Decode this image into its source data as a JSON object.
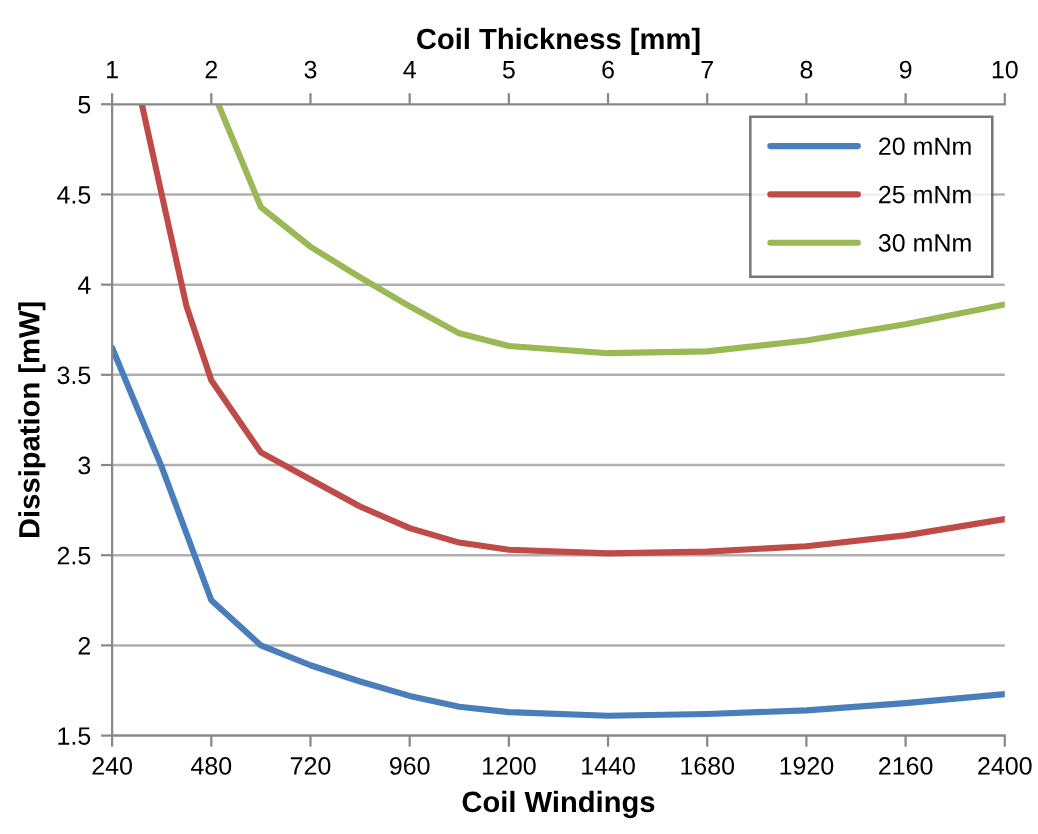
{
  "chart_data": {
    "type": "line",
    "xlabel": "Coil Windings",
    "ylabel": "Dissipation [mW]",
    "x2label": "Coil Thickness [mm]",
    "xlim": [
      240,
      2400
    ],
    "xticks": [
      240,
      480,
      720,
      960,
      1200,
      1440,
      1680,
      1920,
      2160,
      2400
    ],
    "x2lim": [
      1,
      10
    ],
    "x2ticks": [
      1,
      2,
      3,
      4,
      5,
      6,
      7,
      8,
      9,
      10
    ],
    "ylim": [
      1.5,
      5
    ],
    "yticks": [
      1.5,
      2,
      2.5,
      3,
      3.5,
      4,
      4.5,
      5
    ],
    "grid": "y",
    "legend": "top right",
    "marker": "none",
    "line_style": "solid",
    "series": [
      {
        "name": "20 mNm",
        "color": "#4a7ebb",
        "x": [
          240,
          360,
          480,
          600,
          720,
          840,
          960,
          1080,
          1200,
          1440,
          1680,
          1920,
          2160,
          2400
        ],
        "values": [
          3.65,
          2.99,
          2.25,
          2.0,
          1.89,
          1.8,
          1.72,
          1.66,
          1.63,
          1.61,
          1.62,
          1.64,
          1.68,
          1.73
        ]
      },
      {
        "name": "25 mNm",
        "color": "#be4b48",
        "x": [
          312,
          360,
          420,
          480,
          600,
          720,
          840,
          960,
          1080,
          1200,
          1440,
          1680,
          1920,
          2160,
          2400
        ],
        "values": [
          5.0,
          4.5,
          3.88,
          3.47,
          3.07,
          2.92,
          2.77,
          2.65,
          2.57,
          2.53,
          2.51,
          2.52,
          2.55,
          2.61,
          2.7
        ]
      },
      {
        "name": "30 mNm",
        "color": "#98b954",
        "x": [
          497,
          600,
          720,
          840,
          960,
          1080,
          1200,
          1440,
          1680,
          1920,
          2160,
          2400
        ],
        "values": [
          5.0,
          4.43,
          4.21,
          4.04,
          3.88,
          3.73,
          3.66,
          3.62,
          3.63,
          3.69,
          3.78,
          3.89
        ]
      }
    ]
  }
}
